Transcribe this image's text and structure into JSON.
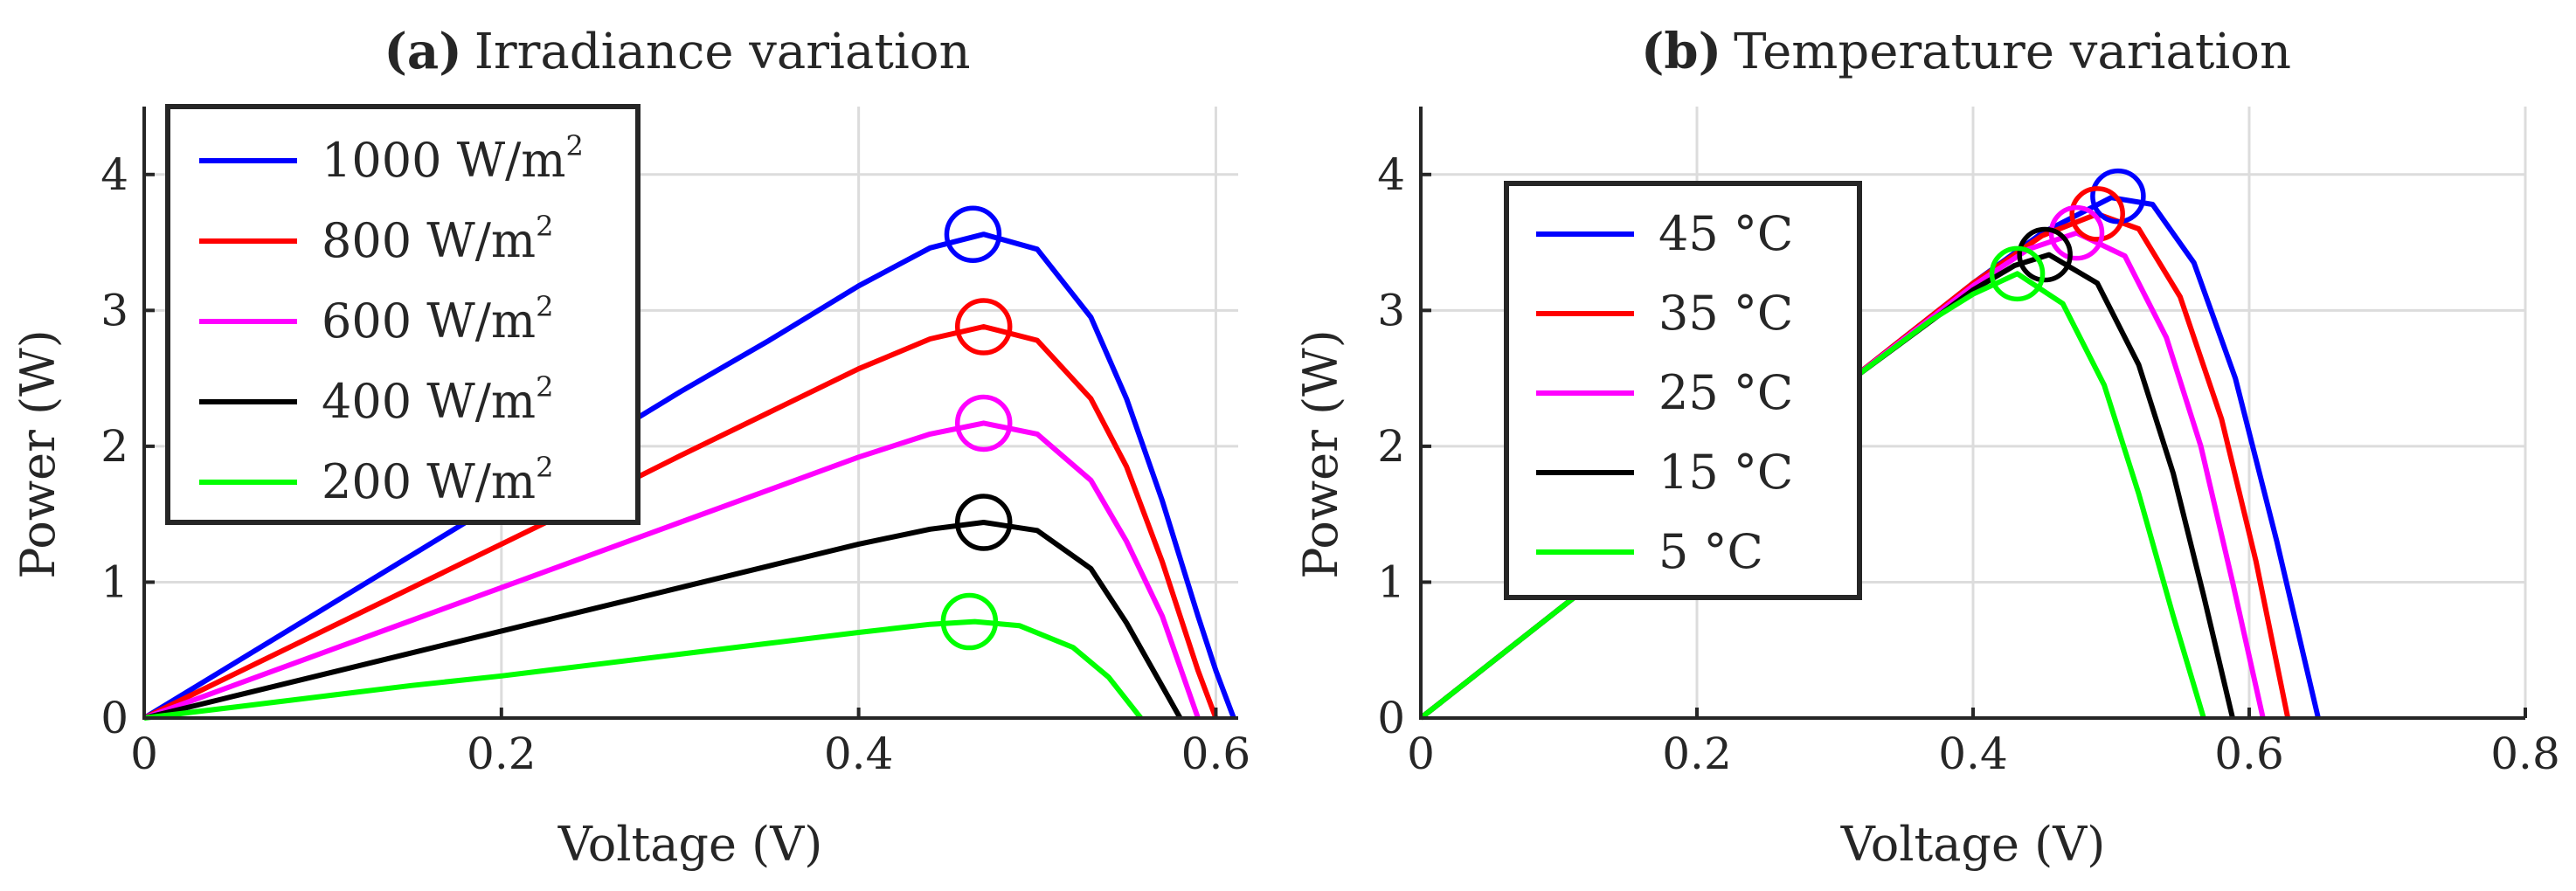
{
  "chart_data": [
    {
      "type": "line",
      "title_bold": "(a)",
      "title": "Irradiance variation",
      "xlabel": "Voltage (V)",
      "ylabel": "Power (W)",
      "xlim": [
        0,
        0.6125
      ],
      "ylim": [
        0,
        4.5
      ],
      "xticks": [
        0,
        0.2,
        0.4,
        0.6
      ],
      "xtick_labels": [
        "0",
        "0.2",
        "0.4",
        "0.6"
      ],
      "yticks": [
        0,
        1,
        2,
        3,
        4
      ],
      "ytick_labels": [
        "0",
        "1",
        "2",
        "3",
        "4"
      ],
      "grid": true,
      "legend_position": "top-left",
      "series": [
        {
          "name": "1000 W/m",
          "sup": "2",
          "color": "#0000ff",
          "x": [
            0,
            0.05,
            0.1,
            0.15,
            0.2,
            0.25,
            0.3,
            0.35,
            0.4,
            0.44,
            0.47,
            0.5,
            0.53,
            0.55,
            0.57,
            0.59,
            0.6,
            0.61
          ],
          "y": [
            0,
            0.4,
            0.8,
            1.2,
            1.6,
            2.0,
            2.4,
            2.78,
            3.18,
            3.46,
            3.56,
            3.45,
            2.95,
            2.35,
            1.6,
            0.75,
            0.35,
            0
          ],
          "mpp": {
            "x": 0.464,
            "y": 3.56
          }
        },
        {
          "name": "800 W/m",
          "sup": "2",
          "color": "#ff0000",
          "x": [
            0,
            0.05,
            0.1,
            0.15,
            0.2,
            0.25,
            0.3,
            0.35,
            0.4,
            0.44,
            0.47,
            0.5,
            0.53,
            0.55,
            0.57,
            0.59,
            0.6
          ],
          "y": [
            0,
            0.32,
            0.64,
            0.96,
            1.28,
            1.6,
            1.93,
            2.25,
            2.57,
            2.79,
            2.88,
            2.78,
            2.35,
            1.85,
            1.15,
            0.35,
            0
          ],
          "mpp": {
            "x": 0.47,
            "y": 2.88
          }
        },
        {
          "name": "600 W/m",
          "sup": "2",
          "color": "#ff00ff",
          "x": [
            0,
            0.05,
            0.1,
            0.15,
            0.2,
            0.25,
            0.3,
            0.35,
            0.4,
            0.44,
            0.47,
            0.5,
            0.53,
            0.55,
            0.57,
            0.59
          ],
          "y": [
            0,
            0.24,
            0.48,
            0.72,
            0.96,
            1.2,
            1.44,
            1.68,
            1.92,
            2.09,
            2.17,
            2.09,
            1.75,
            1.3,
            0.75,
            0
          ],
          "mpp": {
            "x": 0.47,
            "y": 2.17
          }
        },
        {
          "name": "400 W/m",
          "sup": "2",
          "color": "#000000",
          "x": [
            0,
            0.05,
            0.1,
            0.15,
            0.2,
            0.25,
            0.3,
            0.35,
            0.4,
            0.44,
            0.47,
            0.5,
            0.53,
            0.55,
            0.58
          ],
          "y": [
            0,
            0.16,
            0.32,
            0.48,
            0.64,
            0.8,
            0.96,
            1.12,
            1.28,
            1.39,
            1.44,
            1.38,
            1.1,
            0.7,
            0
          ],
          "mpp": {
            "x": 0.47,
            "y": 1.44
          }
        },
        {
          "name": "200 W/m",
          "sup": "2",
          "color": "#00ff00",
          "x": [
            0,
            0.05,
            0.1,
            0.15,
            0.2,
            0.25,
            0.3,
            0.35,
            0.4,
            0.44,
            0.465,
            0.49,
            0.52,
            0.54,
            0.558
          ],
          "y": [
            0,
            0.08,
            0.16,
            0.24,
            0.31,
            0.39,
            0.47,
            0.55,
            0.63,
            0.69,
            0.71,
            0.68,
            0.52,
            0.3,
            0
          ],
          "mpp": {
            "x": 0.462,
            "y": 0.71
          }
        }
      ]
    },
    {
      "type": "line",
      "title_bold": "(b)",
      "title": "Temperature variation",
      "xlabel": "Voltage (V)",
      "ylabel": "Power (W)",
      "xlim": [
        0,
        0.8
      ],
      "ylim": [
        0,
        4.5
      ],
      "xticks": [
        0,
        0.2,
        0.4,
        0.6,
        0.8
      ],
      "xtick_labels": [
        "0",
        "0.2",
        "0.4",
        "0.6",
        "0.8"
      ],
      "yticks": [
        0,
        1,
        2,
        3,
        4
      ],
      "ytick_labels": [
        "0",
        "1",
        "2",
        "3",
        "4"
      ],
      "grid": true,
      "legend_position": "top-left",
      "series": [
        {
          "name": "45 °C",
          "color": "#0000ff",
          "x": [
            0,
            0.1,
            0.2,
            0.3,
            0.4,
            0.45,
            0.5,
            0.53,
            0.56,
            0.59,
            0.62,
            0.65
          ],
          "y": [
            0,
            0.8,
            1.6,
            2.4,
            3.2,
            3.57,
            3.83,
            3.78,
            3.35,
            2.5,
            1.3,
            0
          ],
          "mpp": {
            "x": 0.505,
            "y": 3.84
          }
        },
        {
          "name": "35 °C",
          "color": "#ff0000",
          "x": [
            0,
            0.1,
            0.2,
            0.3,
            0.4,
            0.45,
            0.49,
            0.52,
            0.55,
            0.58,
            0.605,
            0.628
          ],
          "y": [
            0,
            0.8,
            1.6,
            2.4,
            3.2,
            3.55,
            3.71,
            3.6,
            3.1,
            2.2,
            1.15,
            0
          ],
          "mpp": {
            "x": 0.49,
            "y": 3.71
          }
        },
        {
          "name": "25 °C",
          "color": "#ff00ff",
          "x": [
            0,
            0.1,
            0.2,
            0.3,
            0.4,
            0.44,
            0.475,
            0.51,
            0.54,
            0.565,
            0.588,
            0.61
          ],
          "y": [
            0,
            0.8,
            1.6,
            2.4,
            3.18,
            3.45,
            3.57,
            3.4,
            2.8,
            2.0,
            1.0,
            0
          ],
          "mpp": {
            "x": 0.475,
            "y": 3.57
          }
        },
        {
          "name": "15 °C",
          "color": "#000000",
          "x": [
            0,
            0.1,
            0.2,
            0.3,
            0.4,
            0.43,
            0.455,
            0.49,
            0.52,
            0.545,
            0.567,
            0.588
          ],
          "y": [
            0,
            0.8,
            1.6,
            2.4,
            3.15,
            3.33,
            3.41,
            3.2,
            2.6,
            1.8,
            0.9,
            0
          ],
          "mpp": {
            "x": 0.452,
            "y": 3.41
          }
        },
        {
          "name": "5 °C",
          "color": "#00ff00",
          "x": [
            0,
            0.1,
            0.2,
            0.3,
            0.37,
            0.4,
            0.432,
            0.465,
            0.495,
            0.52,
            0.545,
            0.567
          ],
          "y": [
            0,
            0.8,
            1.6,
            2.4,
            2.93,
            3.12,
            3.27,
            3.05,
            2.45,
            1.65,
            0.75,
            0
          ],
          "mpp": {
            "x": 0.432,
            "y": 3.27
          }
        }
      ]
    }
  ]
}
